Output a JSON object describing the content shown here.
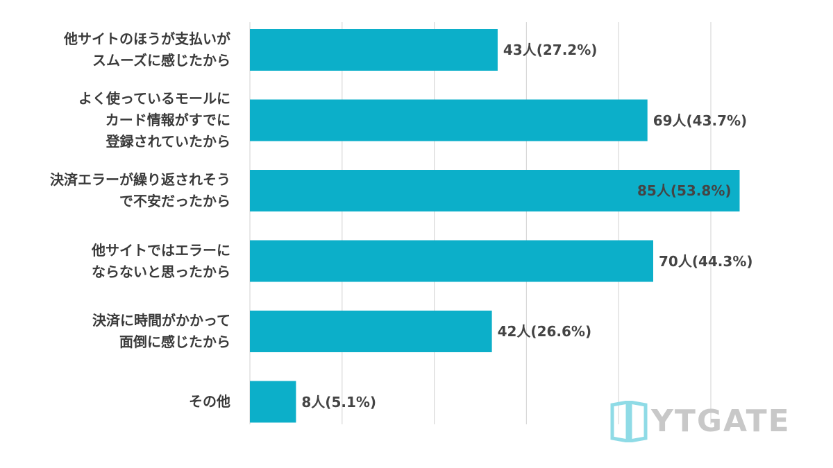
{
  "chart_data": {
    "type": "bar",
    "orientation": "horizontal",
    "categories": [
      [
        "他サイトのほうが支払いが",
        "スムーズに感じたから"
      ],
      [
        "よく使っているモールに",
        "カード情報がすでに",
        "登録されていたから"
      ],
      [
        "決済エラーが繰り返されそう",
        "で不安だったから"
      ],
      [
        "他サイトではエラーに",
        "ならないと思ったから"
      ],
      [
        "決済に時間がかかって",
        "面倒に感じたから"
      ],
      [
        "その他"
      ]
    ],
    "values": [
      43,
      69,
      85,
      70,
      42,
      8
    ],
    "value_labels": [
      "43人(27.2%)",
      "69人(43.7%)",
      "85人(53.8%)",
      "70人(44.3%)",
      "42人(26.6%)",
      "8人(5.1%)"
    ],
    "xlim": [
      0,
      95
    ],
    "grid": true,
    "bar_color": "#0cafc9",
    "grid_color": "#d8d8d8"
  },
  "logo": {
    "text": "YTGATE",
    "icon": "door-frame-icon",
    "color": "#8fdbe6"
  }
}
